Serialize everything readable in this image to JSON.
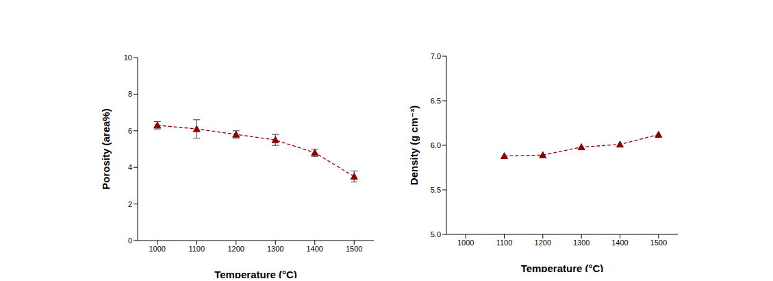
{
  "chart_data": [
    {
      "type": "line",
      "x_label": "Temperature (°C)",
      "y_label": "Porosity (area%)",
      "x": [
        1000,
        1100,
        1200,
        1300,
        1400,
        1500
      ],
      "values": [
        6.3,
        6.1,
        5.8,
        5.5,
        4.8,
        3.5
      ],
      "errors": [
        0.2,
        0.5,
        0.2,
        0.3,
        0.2,
        0.3
      ],
      "color": "#8b0000",
      "marker": "triangle",
      "line_style": "dashed",
      "xlim": [
        950,
        1550
      ],
      "xticks": [
        1000,
        1100,
        1200,
        1300,
        1400,
        1500
      ],
      "ylim": [
        0,
        10
      ],
      "yticks": [
        0,
        2,
        4,
        6,
        8,
        10
      ]
    },
    {
      "type": "line",
      "x_label": "Temperature (°C)",
      "y_label": "Density (g cm⁻³)",
      "x": [
        1100,
        1200,
        1300,
        1400,
        1500
      ],
      "values": [
        5.88,
        5.89,
        5.98,
        6.01,
        6.12
      ],
      "color": "#8b0000",
      "marker": "triangle",
      "line_style": "dashed",
      "xlim": [
        950,
        1550
      ],
      "xticks": [
        1000,
        1100,
        1200,
        1300,
        1400,
        1500
      ],
      "ylim": [
        5,
        7
      ],
      "yticks": [
        {
          "value": 5,
          "label": "5.0"
        },
        {
          "value": 5.5,
          "label": "5.5"
        },
        {
          "value": 6,
          "label": "6.0"
        },
        {
          "value": 6.5,
          "label": "6.5"
        },
        {
          "value": 7,
          "label": "7.0"
        }
      ]
    }
  ]
}
